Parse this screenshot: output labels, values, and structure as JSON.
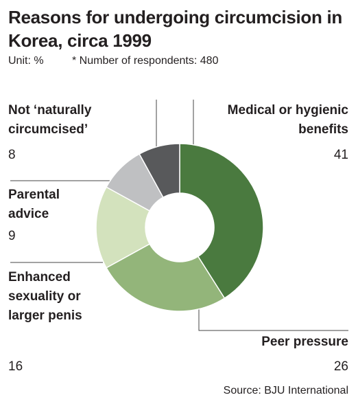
{
  "chart_data": {
    "type": "donut",
    "title": "Reasons for undergoing circumcision in Korea, circa 1999",
    "unit": "Unit: %",
    "note": "* Number of respondents: 480",
    "source": "Source: BJU International",
    "categories": [
      "Medical or hygienic benefits",
      "Peer pressure",
      "Enhanced sexuality or larger penis",
      "Parental advice",
      "Not ‘naturally circumcised’"
    ],
    "values": [
      41,
      26,
      16,
      9,
      8
    ],
    "colors": [
      "#4a7a3f",
      "#93b57a",
      "#d3e2bd",
      "#bfc0c2",
      "#58595b"
    ]
  }
}
